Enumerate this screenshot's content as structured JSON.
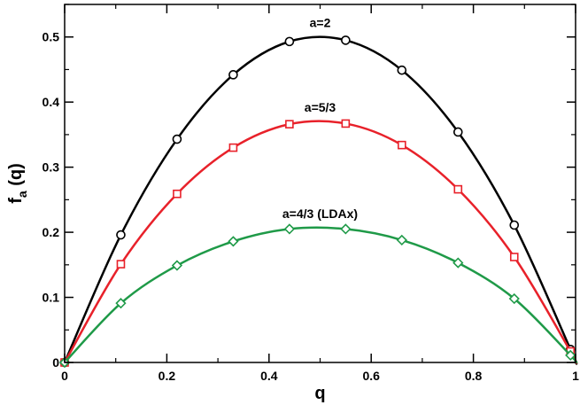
{
  "chart_data": {
    "type": "line",
    "title": "",
    "xlabel": "q",
    "ylabel_main": "f",
    "ylabel_sub": "a",
    "ylabel_tail": " (q)",
    "xlim": [
      0,
      1
    ],
    "ylim": [
      0,
      0.55
    ],
    "x_ticks": [
      0,
      0.2,
      0.4,
      0.6,
      0.8,
      1
    ],
    "x_tick_labels": [
      "0",
      "0.2",
      "0.4",
      "0.6",
      "0.8",
      "1"
    ],
    "y_ticks": [
      0,
      0.1,
      0.2,
      0.3,
      0.4,
      0.5
    ],
    "y_tick_labels": [
      "0",
      "0.1",
      "0.2",
      "0.3",
      "0.4",
      "0.5"
    ],
    "grid": false,
    "series": [
      {
        "name": "a=2",
        "color": "#000000",
        "marker": "circle",
        "label_x": 0.5,
        "label_y": 0.515,
        "x": [
          0,
          0.11,
          0.22,
          0.33,
          0.44,
          0.55,
          0.66,
          0.77,
          0.88,
          0.99
        ],
        "y": [
          0,
          0.196,
          0.343,
          0.442,
          0.493,
          0.495,
          0.449,
          0.354,
          0.211,
          0.02
        ]
      },
      {
        "name": "a=5/3",
        "color": "#e8212a",
        "marker": "square",
        "label_x": 0.5,
        "label_y": 0.385,
        "x": [
          0,
          0.11,
          0.22,
          0.33,
          0.44,
          0.55,
          0.66,
          0.77,
          0.88,
          0.99
        ],
        "y": [
          0,
          0.151,
          0.259,
          0.33,
          0.366,
          0.367,
          0.334,
          0.266,
          0.162,
          0.017
        ]
      },
      {
        "name": "a=4/3 (LDAx)",
        "color": "#1f9a48",
        "marker": "diamond",
        "label_x": 0.5,
        "label_y": 0.222,
        "x": [
          0,
          0.11,
          0.22,
          0.33,
          0.44,
          0.55,
          0.66,
          0.77,
          0.88,
          0.99
        ],
        "y": [
          0,
          0.091,
          0.149,
          0.186,
          0.205,
          0.205,
          0.188,
          0.153,
          0.098,
          0.011
        ]
      }
    ]
  }
}
